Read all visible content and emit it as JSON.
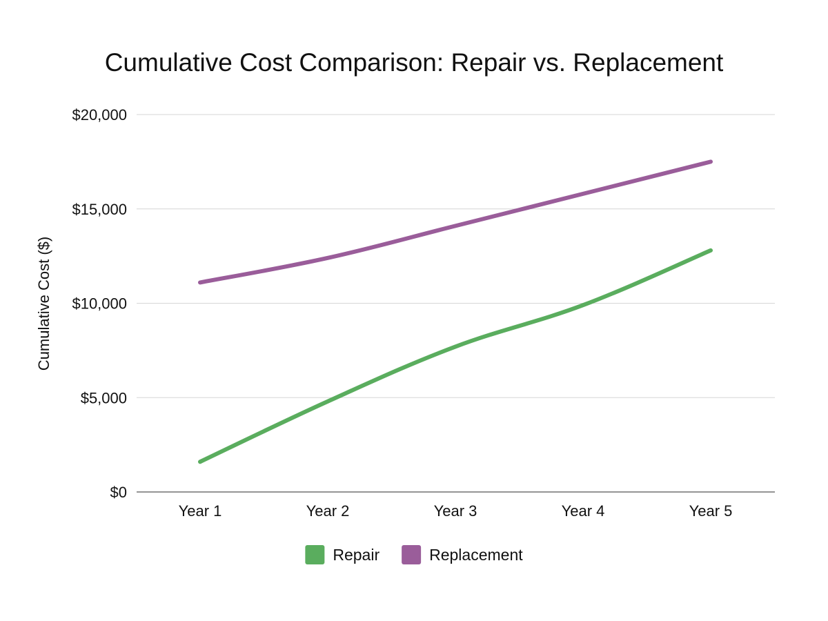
{
  "chart_data": {
    "type": "line",
    "title": "Cumulative Cost Comparison: Repair vs. Replacement",
    "xlabel": "",
    "ylabel": "Cumulative Cost ($)",
    "categories": [
      "Year 1",
      "Year 2",
      "Year 3",
      "Year 4",
      "Year 5"
    ],
    "ylim": [
      0,
      20000
    ],
    "yticks": [
      0,
      5000,
      10000,
      15000,
      20000
    ],
    "ytick_labels": [
      "$0",
      "$5,000",
      "$10,000",
      "$15,000",
      "$20,000"
    ],
    "grid": true,
    "legend_position": "bottom-center",
    "series": [
      {
        "name": "Repair",
        "color": "#5aad5e",
        "values": [
          1600,
          4800,
          7700,
          9900,
          12800
        ]
      },
      {
        "name": "Replacement",
        "color": "#9a5d9a",
        "values": [
          11100,
          12400,
          14100,
          15800,
          17500
        ]
      }
    ]
  }
}
